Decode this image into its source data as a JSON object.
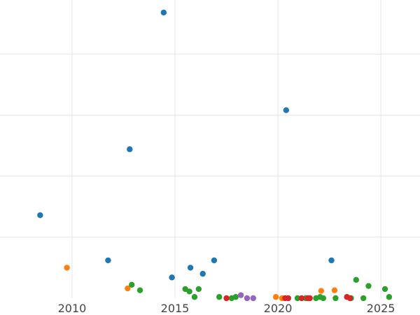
{
  "chart_data": {
    "type": "scatter",
    "x_range": [
      2006.5,
      2026.9
    ],
    "y_range": [
      0,
      25
    ],
    "x_ticks": [
      2010,
      2015,
      2020,
      2025
    ],
    "y_gridlines": [
      5,
      10,
      15,
      20
    ],
    "grid": true,
    "legend": "none",
    "series": [
      {
        "color": "#1f77b4",
        "points": [
          [
            2008.45,
            6.8
          ],
          [
            2011.75,
            3.1
          ],
          [
            2012.8,
            12.2
          ],
          [
            2014.45,
            23.4
          ],
          [
            2014.85,
            1.7
          ],
          [
            2015.75,
            2.5
          ],
          [
            2016.35,
            2.0
          ],
          [
            2016.9,
            3.1
          ],
          [
            2020.4,
            15.4
          ],
          [
            2022.6,
            3.1
          ]
        ]
      },
      {
        "color": "#ff7f0e",
        "points": [
          [
            2009.75,
            2.5
          ],
          [
            2012.7,
            0.8
          ],
          [
            2019.9,
            0.1
          ],
          [
            2020.2,
            0.0
          ],
          [
            2022.1,
            0.6
          ],
          [
            2022.75,
            0.65
          ]
        ]
      },
      {
        "color": "#2ca02c",
        "points": [
          [
            2012.9,
            1.1
          ],
          [
            2013.3,
            0.65
          ],
          [
            2015.5,
            0.75
          ],
          [
            2015.7,
            0.55
          ],
          [
            2015.95,
            0.1
          ],
          [
            2016.15,
            0.75
          ],
          [
            2017.15,
            0.1
          ],
          [
            2017.75,
            0.0
          ],
          [
            2017.95,
            0.1
          ],
          [
            2020.95,
            0.0
          ],
          [
            2021.35,
            0.0
          ],
          [
            2021.85,
            0.0
          ],
          [
            2022.05,
            0.1
          ],
          [
            2022.2,
            0.0
          ],
          [
            2022.8,
            0.0
          ],
          [
            2023.55,
            0.0
          ],
          [
            2023.8,
            1.5
          ],
          [
            2024.15,
            0.0
          ],
          [
            2024.4,
            1.0
          ],
          [
            2025.2,
            0.75
          ],
          [
            2025.4,
            0.1
          ]
        ]
      },
      {
        "color": "#d62728",
        "points": [
          [
            2017.5,
            0.0
          ],
          [
            2020.35,
            0.0
          ],
          [
            2020.5,
            0.0
          ],
          [
            2021.15,
            0.0
          ],
          [
            2021.45,
            0.0
          ],
          [
            2021.55,
            0.0
          ],
          [
            2023.35,
            0.1
          ],
          [
            2023.5,
            0.0
          ]
        ]
      },
      {
        "color": "#9467bd",
        "points": [
          [
            2018.2,
            0.25
          ],
          [
            2018.5,
            0.0
          ],
          [
            2018.8,
            0.0
          ]
        ]
      }
    ]
  }
}
